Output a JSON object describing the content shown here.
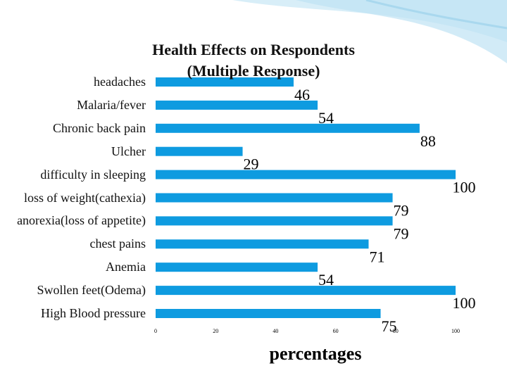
{
  "chart_data": {
    "type": "bar",
    "orientation": "horizontal",
    "title": "Health Effects on Respondents (Multiple Response)",
    "xlabel": "percentages",
    "categories": [
      "headaches",
      "Malaria/fever",
      "Chronic back pain",
      "Ulcher",
      "difficulty in sleeping",
      "loss of weight(cathexia)",
      "anorexia(loss of appetite)",
      "chest pains",
      "Anemia",
      "Swollen feet(Odema)",
      "High Blood pressure"
    ],
    "values": [
      46,
      54,
      88,
      29,
      100,
      79,
      79,
      71,
      54,
      100,
      75
    ],
    "color": "#0e9be0",
    "xlim": [
      0,
      100
    ],
    "xticks": [
      0,
      20,
      40,
      60,
      80,
      100
    ],
    "grid": false
  }
}
